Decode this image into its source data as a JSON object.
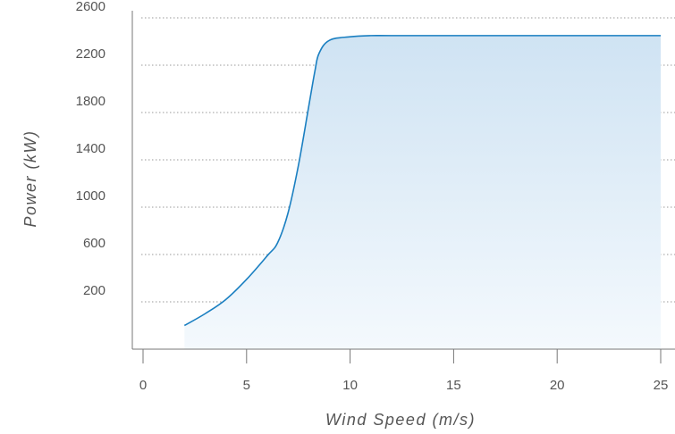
{
  "chart_data": {
    "type": "area",
    "title": "",
    "xlabel": "Wind Speed (m/s)",
    "ylabel": "Power (kW)",
    "xlim": [
      -0.5,
      25
    ],
    "ylim": [
      0,
      2700
    ],
    "x_ticks": [
      0,
      5,
      10,
      15,
      20,
      25
    ],
    "x_tick_labels": [
      "0",
      "5",
      "10",
      "15",
      "20",
      "25"
    ],
    "y_ticks": [
      200,
      600,
      1000,
      1400,
      1800,
      2200,
      2600
    ],
    "y_tick_labels": [
      "200",
      "600",
      "1000",
      "1400",
      "1800",
      "2200",
      "2600"
    ],
    "grid": "horizontal-dotted",
    "legend": "none",
    "colors": {
      "line": "#1a7fc1",
      "fill_top": "#cfe3f3",
      "fill_bottom": "#f4f9fd",
      "grid": "#9a9a9a",
      "axis": "#777777"
    },
    "series": [
      {
        "x": [
          2,
          3,
          4,
          5,
          6,
          6.5,
          7,
          7.5,
          8,
          8.3,
          8.5,
          9,
          10,
          11,
          12,
          15,
          20,
          25
        ],
        "y": [
          0,
          100,
          220,
          390,
          590,
          700,
          950,
          1350,
          1850,
          2150,
          2300,
          2410,
          2440,
          2450,
          2450,
          2450,
          2450,
          2450
        ]
      }
    ]
  }
}
